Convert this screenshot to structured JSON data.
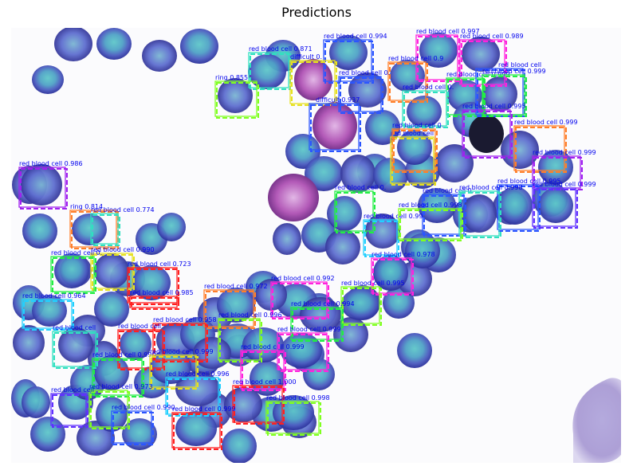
{
  "figure": {
    "title": "Predictions",
    "background_color": "#ffffff",
    "image_background_color": "#fbfbfd",
    "label_text_color": "#0000ee"
  },
  "palette": {
    "blue": "#2b55ff",
    "purple": "#a020f0",
    "magenta": "#ff22dd",
    "orange": "#ff7f2a",
    "yellow": "#e6e020",
    "lime": "#80ff20",
    "green": "#22ee44",
    "cyan": "#22d0ff",
    "teal": "#30e0c0",
    "red": "#ff2020",
    "violet": "#6030ff"
  },
  "detections": [
    {
      "label": "red blood cell 0.997",
      "color": "magenta"
    },
    {
      "label": "red blood cell 0.989",
      "color": "magenta"
    },
    {
      "label": "red blood cell 0.994",
      "color": "blue"
    },
    {
      "label": "red blood cell 0.871",
      "color": "teal"
    },
    {
      "label": "difficult 0.",
      "color": "yellow"
    },
    {
      "label": "red blood cell 0.9",
      "color": "orange"
    },
    {
      "label": "red blood cell 0.999",
      "color": "green"
    },
    {
      "label": "ring 0.855",
      "color": "lime"
    },
    {
      "label": "red blood cell 0.",
      "color": "blue"
    },
    {
      "label": "red blood cell",
      "color": "blue"
    },
    {
      "label": "difficult 0.937",
      "color": "blue"
    },
    {
      "label": "red blood cell 0.",
      "color": "teal"
    },
    {
      "label": "red blood cell 0.999",
      "color": "green"
    },
    {
      "label": "red blood cell 0.999",
      "color": "orange"
    },
    {
      "label": "red blood cell 0.999",
      "color": "purple"
    },
    {
      "label": "red blood cell 0.995",
      "color": "purple"
    },
    {
      "label": "red blood cell",
      "color": "yellow"
    },
    {
      "label": "red blood cell 0.986",
      "color": "purple"
    },
    {
      "label": "red blood cell 0.995",
      "color": "blue"
    },
    {
      "label": "red blood cell 0.999",
      "color": "violet"
    },
    {
      "label": "red blood cell 0.",
      "color": "orange"
    },
    {
      "label": "red blood cell 0.",
      "color": "blue"
    },
    {
      "label": "red blood cell 0.998",
      "color": "teal"
    },
    {
      "label": "ring 0.814",
      "color": "orange"
    },
    {
      "label": "red blood cell 0.774",
      "color": "teal"
    },
    {
      "label": "red blood cell 0.",
      "color": "green"
    },
    {
      "label": "red blood cell 0.99",
      "color": "cyan"
    },
    {
      "label": "red blood cell 0.998",
      "color": "lime"
    },
    {
      "label": "red blood cell 0.990",
      "color": "yellow"
    },
    {
      "label": "red blood cell 0.",
      "color": "green"
    },
    {
      "label": "red blood cell 0.978",
      "color": "magenta"
    },
    {
      "label": "red blood cell 0.723",
      "color": "red"
    },
    {
      "label": "red blood cell 0.985",
      "color": "red"
    },
    {
      "label": "red blood cell 0.992",
      "color": "magenta"
    },
    {
      "label": "red blood cell 0.972",
      "color": "orange"
    },
    {
      "label": "red blood cell 0.995",
      "color": "lime"
    },
    {
      "label": "red blood cell 0.964",
      "color": "cyan"
    },
    {
      "label": "red blood cell 0.994",
      "color": "green"
    },
    {
      "label": "red blood cell 0.958",
      "color": "red"
    },
    {
      "label": "red blood cell 0.996",
      "color": "lime"
    },
    {
      "label": "red blood cell",
      "color": "teal"
    },
    {
      "label": "red blood cell",
      "color": "red"
    },
    {
      "label": "red blood cell 0.999",
      "color": "magenta"
    },
    {
      "label": "red blood cell 0.999",
      "color": "magenta"
    },
    {
      "label": "red blood cell 0.990",
      "color": "green"
    },
    {
      "label": "red blood cell 0.999",
      "color": "yellow"
    },
    {
      "label": "red blood cell 0.996",
      "color": "cyan"
    },
    {
      "label": "red blood cell 0.973",
      "color": "lime"
    },
    {
      "label": "red blood cell 1.000",
      "color": "red"
    },
    {
      "label": "red blood cell 0.998",
      "color": "lime"
    },
    {
      "label": "red blood cell",
      "color": "violet"
    },
    {
      "label": "red blood cell 0.990",
      "color": "blue"
    },
    {
      "label": "red blood cell 0.999",
      "color": "red"
    }
  ]
}
